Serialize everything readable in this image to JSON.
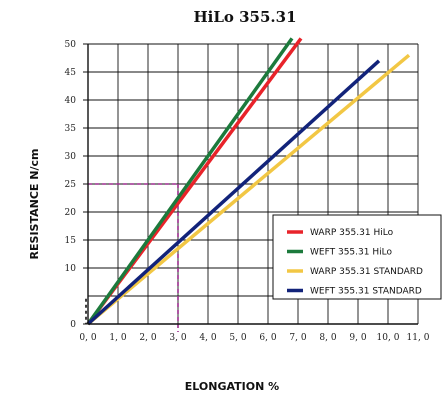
{
  "chart_data": {
    "type": "line",
    "title": "HiLo 355.31",
    "xlabel": "ELONGATION %",
    "ylabel": "RESISTANCE N/cm",
    "xlim": [
      0,
      11
    ],
    "ylim": [
      0,
      50
    ],
    "x_ticks": [
      "0, 0",
      "1, 0",
      "2, 0",
      "3, 0",
      "4, 0",
      "5, 0",
      "6, 0",
      "7, 0",
      "8, 0",
      "9, 0",
      "10, 0",
      "11, 0"
    ],
    "y_ticks": [
      "0",
      "10",
      "15",
      "20",
      "25",
      "30",
      "35",
      "40",
      "45",
      "50"
    ],
    "y_tick_values": [
      0,
      10,
      15,
      20,
      25,
      30,
      35,
      40,
      45,
      50
    ],
    "grid": true,
    "legend_position": "bottom-right",
    "series": [
      {
        "name": "WARP 355.31 HiLo",
        "color": "#e8232a",
        "x": [
          0,
          7.1
        ],
        "y": [
          0,
          51
        ]
      },
      {
        "name": "WEFT 355.31 HiLo",
        "color": "#1c7a3c",
        "x": [
          0,
          6.8
        ],
        "y": [
          0,
          51
        ]
      },
      {
        "name": "WARP 355.31 STANDARD",
        "color": "#f2c744",
        "x": [
          0,
          10.7
        ],
        "y": [
          0,
          48
        ]
      },
      {
        "name": "WEFT 355.31 STANDARD",
        "color": "#12237a",
        "x": [
          0,
          9.7
        ],
        "y": [
          0,
          47
        ]
      }
    ],
    "annotations": [
      {
        "type": "dashed-guide",
        "color": "#9b2d8e",
        "x": 3.0,
        "y": 25
      }
    ]
  }
}
